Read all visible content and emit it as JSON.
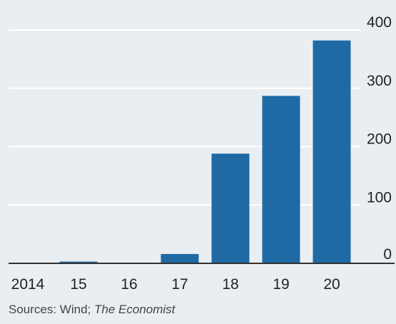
{
  "chart_data": {
    "type": "bar",
    "title": "",
    "xlabel": "",
    "ylabel": "",
    "categories": [
      "2014",
      "15",
      "16",
      "17",
      "18",
      "19",
      "20"
    ],
    "values": [
      1,
      3,
      1,
      16,
      188,
      287,
      382
    ],
    "ylim": [
      0,
      400
    ],
    "yticks": [
      "0",
      "100",
      "200",
      "300",
      "400"
    ],
    "grid": true,
    "y_axis_side": "right",
    "bar_color": "#1f6aa5",
    "grid_color": "#ffffff",
    "baseline_color": "#333333"
  },
  "source": {
    "prefix": "Sources: Wind; ",
    "publication": "The Economist"
  }
}
